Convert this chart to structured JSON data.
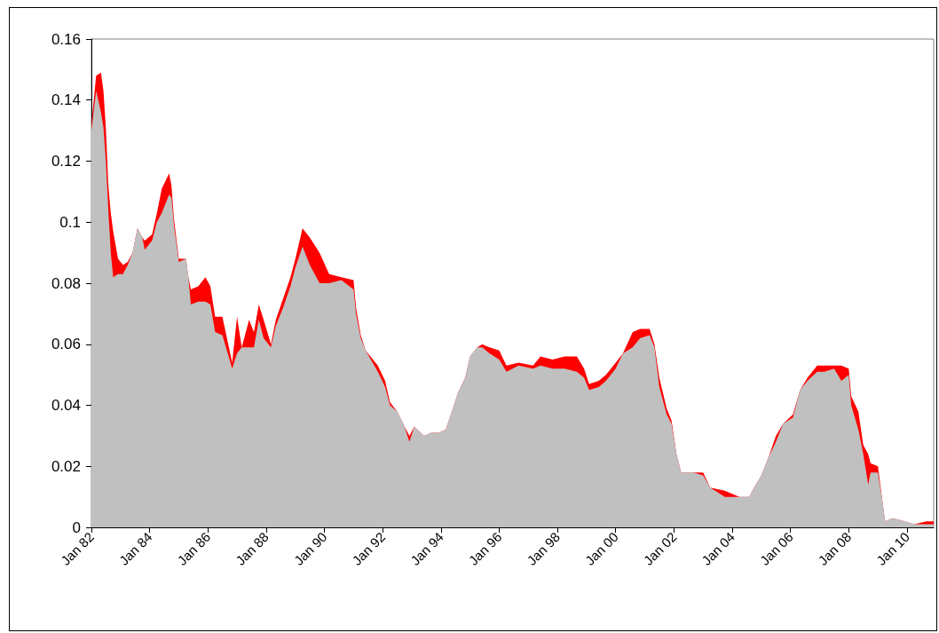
{
  "chart_data": {
    "type": "area",
    "x": [
      "1982-01",
      "1982-03",
      "1982-05",
      "1982-06",
      "1982-07",
      "1982-08",
      "1982-09",
      "1982-10",
      "1982-12",
      "1983-02",
      "1983-04",
      "1983-06",
      "1983-08",
      "1983-10",
      "1983-11",
      "1984-02",
      "1984-04",
      "1984-06",
      "1984-09",
      "1984-10",
      "1984-11",
      "1985-01",
      "1985-04",
      "1985-05",
      "1985-06",
      "1985-09",
      "1985-12",
      "1986-02",
      "1986-04",
      "1986-07",
      "1986-11",
      "1987-01",
      "1987-03",
      "1987-06",
      "1987-08",
      "1987-10",
      "1987-12",
      "1988-03",
      "1988-05",
      "1988-08",
      "1988-11",
      "1989-01",
      "1989-04",
      "1989-07",
      "1989-11",
      "1990-03",
      "1990-08",
      "1991-01",
      "1991-02",
      "1991-04",
      "1991-06",
      "1991-11",
      "1992-02",
      "1992-04",
      "1992-07",
      "1992-10",
      "1992-12",
      "1993-02",
      "1993-06",
      "1993-09",
      "1993-12",
      "1994-03",
      "1994-06",
      "1994-08",
      "1994-11",
      "1995-01",
      "1995-04",
      "1995-06",
      "1995-09",
      "1996-01",
      "1996-04",
      "1996-09",
      "1997-03",
      "1997-06",
      "1997-11",
      "1998-04",
      "1998-09",
      "1998-12",
      "1999-02",
      "1999-06",
      "1999-09",
      "2000-01",
      "2000-04",
      "2000-08",
      "2000-11",
      "2001-03",
      "2001-05",
      "2001-07",
      "2001-10",
      "2001-12",
      "2002-02",
      "2002-04",
      "2002-09",
      "2003-01",
      "2003-04",
      "2003-10",
      "2004-04",
      "2004-08",
      "2004-10",
      "2005-01",
      "2005-04",
      "2005-07",
      "2005-10",
      "2006-02",
      "2006-05",
      "2006-08",
      "2006-12",
      "2007-03",
      "2007-07",
      "2007-10",
      "2008-01",
      "2008-02",
      "2008-05",
      "2008-07",
      "2008-09",
      "2008-10",
      "2009-01",
      "2009-03",
      "2009-04",
      "2009-07",
      "2009-12",
      "2010-04",
      "2010-09",
      "2010-12"
    ],
    "series": [
      {
        "color": "#ff0000",
        "values": [
          0.132,
          0.148,
          0.149,
          0.143,
          0.131,
          0.112,
          0.103,
          0.097,
          0.088,
          0.086,
          0.087,
          0.09,
          0.098,
          0.095,
          0.094,
          0.096,
          0.103,
          0.111,
          0.116,
          0.112,
          0.101,
          0.088,
          0.088,
          0.082,
          0.078,
          0.079,
          0.082,
          0.079,
          0.069,
          0.069,
          0.054,
          0.069,
          0.059,
          0.068,
          0.064,
          0.073,
          0.068,
          0.06,
          0.068,
          0.075,
          0.082,
          0.088,
          0.098,
          0.095,
          0.09,
          0.083,
          0.082,
          0.081,
          0.072,
          0.063,
          0.058,
          0.053,
          0.048,
          0.041,
          0.038,
          0.033,
          0.03,
          0.033,
          0.03,
          0.031,
          0.031,
          0.032,
          0.039,
          0.044,
          0.049,
          0.056,
          0.059,
          0.06,
          0.059,
          0.058,
          0.053,
          0.054,
          0.053,
          0.056,
          0.055,
          0.056,
          0.056,
          0.052,
          0.047,
          0.048,
          0.05,
          0.054,
          0.057,
          0.064,
          0.065,
          0.065,
          0.06,
          0.049,
          0.039,
          0.035,
          0.024,
          0.018,
          0.018,
          0.018,
          0.013,
          0.012,
          0.01,
          0.01,
          0.013,
          0.017,
          0.023,
          0.03,
          0.034,
          0.037,
          0.045,
          0.049,
          0.053,
          0.053,
          0.053,
          0.053,
          0.052,
          0.043,
          0.038,
          0.027,
          0.024,
          0.021,
          0.02,
          0.008,
          0.002,
          0.003,
          0.002,
          0.001,
          0.002,
          0.002
        ]
      },
      {
        "color": "#c0c0c0",
        "values": [
          0.13,
          0.143,
          0.136,
          0.131,
          0.12,
          0.104,
          0.09,
          0.082,
          0.083,
          0.083,
          0.086,
          0.09,
          0.098,
          0.095,
          0.091,
          0.094,
          0.1,
          0.103,
          0.109,
          0.108,
          0.099,
          0.087,
          0.088,
          0.082,
          0.073,
          0.074,
          0.074,
          0.073,
          0.064,
          0.063,
          0.052,
          0.057,
          0.059,
          0.059,
          0.059,
          0.068,
          0.062,
          0.059,
          0.066,
          0.072,
          0.079,
          0.085,
          0.092,
          0.086,
          0.08,
          0.08,
          0.081,
          0.078,
          0.07,
          0.062,
          0.058,
          0.051,
          0.046,
          0.04,
          0.038,
          0.033,
          0.028,
          0.033,
          0.03,
          0.031,
          0.031,
          0.032,
          0.039,
          0.044,
          0.049,
          0.056,
          0.059,
          0.059,
          0.057,
          0.055,
          0.051,
          0.053,
          0.052,
          0.053,
          0.052,
          0.052,
          0.051,
          0.049,
          0.045,
          0.046,
          0.048,
          0.052,
          0.057,
          0.059,
          0.062,
          0.063,
          0.059,
          0.046,
          0.037,
          0.034,
          0.024,
          0.018,
          0.018,
          0.017,
          0.013,
          0.01,
          0.01,
          0.01,
          0.013,
          0.017,
          0.023,
          0.028,
          0.034,
          0.036,
          0.045,
          0.048,
          0.051,
          0.051,
          0.052,
          0.048,
          0.05,
          0.04,
          0.032,
          0.024,
          0.014,
          0.018,
          0.018,
          0.008,
          0.002,
          0.003,
          0.002,
          0.001,
          0.001,
          0.001
        ]
      }
    ],
    "xlim": [
      "1982-01",
      "2010-12"
    ],
    "xticks": [
      {
        "value": "1982-01",
        "label": "Jan 82"
      },
      {
        "value": "1984-01",
        "label": "Jan 84"
      },
      {
        "value": "1986-01",
        "label": "Jan 86"
      },
      {
        "value": "1988-01",
        "label": "Jan 88"
      },
      {
        "value": "1990-01",
        "label": "Jan 90"
      },
      {
        "value": "1992-01",
        "label": "Jan 92"
      },
      {
        "value": "1994-01",
        "label": "Jan 94"
      },
      {
        "value": "1996-01",
        "label": "Jan 96"
      },
      {
        "value": "1998-01",
        "label": "Jan 98"
      },
      {
        "value": "2000-01",
        "label": "Jan 00"
      },
      {
        "value": "2002-01",
        "label": "Jan 02"
      },
      {
        "value": "2004-01",
        "label": "Jan 04"
      },
      {
        "value": "2006-01",
        "label": "Jan 06"
      },
      {
        "value": "2008-01",
        "label": "Jan 08"
      },
      {
        "value": "2010-01",
        "label": "Jan 10"
      }
    ],
    "ylim": [
      0,
      0.16
    ],
    "yticks": [
      0,
      0.02,
      0.04,
      0.06,
      0.08,
      0.1,
      0.12,
      0.14,
      0.16
    ]
  }
}
